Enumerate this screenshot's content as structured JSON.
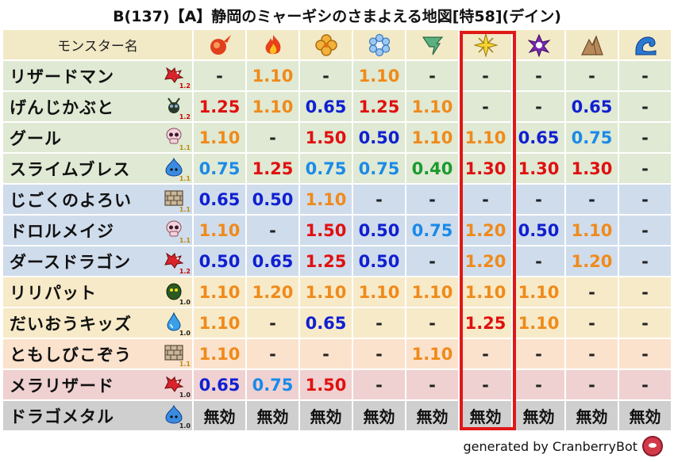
{
  "title": "B(137)【A】静岡のミャーギシのさまよえる地図[特58](デイン)",
  "header": {
    "name_label": "モンスター名",
    "elements": [
      "fire-icon",
      "flame-icon",
      "clover-icon",
      "ice-flower-icon",
      "tornado-icon",
      "light-icon",
      "dark-icon",
      "rock-icon",
      "wave-icon"
    ]
  },
  "rows": [
    {
      "name": "リザードマン",
      "icon": "red-dragon-icon",
      "level": "1.2",
      "bg": "green",
      "values": [
        "-",
        "1.10",
        "-",
        "1.10",
        "-",
        "-",
        "-",
        "-",
        "-"
      ]
    },
    {
      "name": "げんじかぶと",
      "icon": "beetle-icon",
      "level": "1.2",
      "bg": "green",
      "values": [
        "1.25",
        "1.10",
        "0.65",
        "1.25",
        "1.10",
        "-",
        "-",
        "0.65",
        "-"
      ]
    },
    {
      "name": "グール",
      "icon": "skull-icon",
      "level": "1.1",
      "bg": "green",
      "values": [
        "1.10",
        "-",
        "1.50",
        "0.50",
        "1.10",
        "1.10",
        "0.65",
        "0.75",
        "-"
      ]
    },
    {
      "name": "スライムブレス",
      "icon": "slime-icon",
      "level": "1.1",
      "bg": "green",
      "values": [
        "0.75",
        "1.25",
        "0.75",
        "0.75",
        "0.40",
        "1.30",
        "1.30",
        "1.30",
        "-"
      ]
    },
    {
      "name": "じごくのよろい",
      "icon": "brick-icon",
      "level": "1.1",
      "bg": "blue",
      "values": [
        "0.65",
        "0.50",
        "1.10",
        "-",
        "-",
        "-",
        "-",
        "-",
        "-"
      ]
    },
    {
      "name": "ドロルメイジ",
      "icon": "skull-icon",
      "level": "1.1",
      "bg": "blue",
      "values": [
        "1.10",
        "-",
        "1.50",
        "0.50",
        "0.75",
        "1.20",
        "0.50",
        "1.10",
        "-"
      ]
    },
    {
      "name": "ダースドラゴン",
      "icon": "red-dragon-icon",
      "level": "1.2",
      "bg": "blue",
      "values": [
        "0.50",
        "0.65",
        "1.25",
        "0.50",
        "-",
        "1.20",
        "-",
        "1.20",
        "-"
      ]
    },
    {
      "name": "リリパット",
      "icon": "goblin-icon",
      "level": "1.0",
      "bg": "yellow",
      "values": [
        "1.10",
        "1.20",
        "1.10",
        "1.10",
        "1.10",
        "1.10",
        "1.10",
        "-",
        "-"
      ]
    },
    {
      "name": "だいおうキッズ",
      "icon": "drop-icon",
      "level": "1.0",
      "bg": "yellow",
      "values": [
        "1.10",
        "-",
        "0.65",
        "-",
        "-",
        "1.25",
        "1.10",
        "-",
        "-"
      ]
    },
    {
      "name": "ともしびこぞう",
      "icon": "brick-icon",
      "level": "1.1",
      "bg": "orange",
      "values": [
        "1.10",
        "-",
        "-",
        "-",
        "1.10",
        "-",
        "-",
        "-",
        "-"
      ]
    },
    {
      "name": "メラリザード",
      "icon": "red-dragon-icon",
      "level": "1.0",
      "bg": "red",
      "values": [
        "0.65",
        "0.75",
        "1.50",
        "-",
        "-",
        "-",
        "-",
        "-",
        "-"
      ]
    },
    {
      "name": "ドラゴメタル",
      "icon": "slime-icon",
      "level": "1.0",
      "bg": "gray",
      "values": [
        "無効",
        "無効",
        "無効",
        "無効",
        "無効",
        "無効",
        "無効",
        "無効",
        "無効"
      ]
    }
  ],
  "footer": {
    "text": "generated by CranberryBot",
    "icon": "cranberry-icon"
  },
  "colors": {
    "high": "#e01010",
    "mid": "#f08a1a",
    "low": "#1020d0",
    "lower": "#1a8ae8",
    "lowest": "#1a9a30",
    "highlight": "#e01818"
  }
}
